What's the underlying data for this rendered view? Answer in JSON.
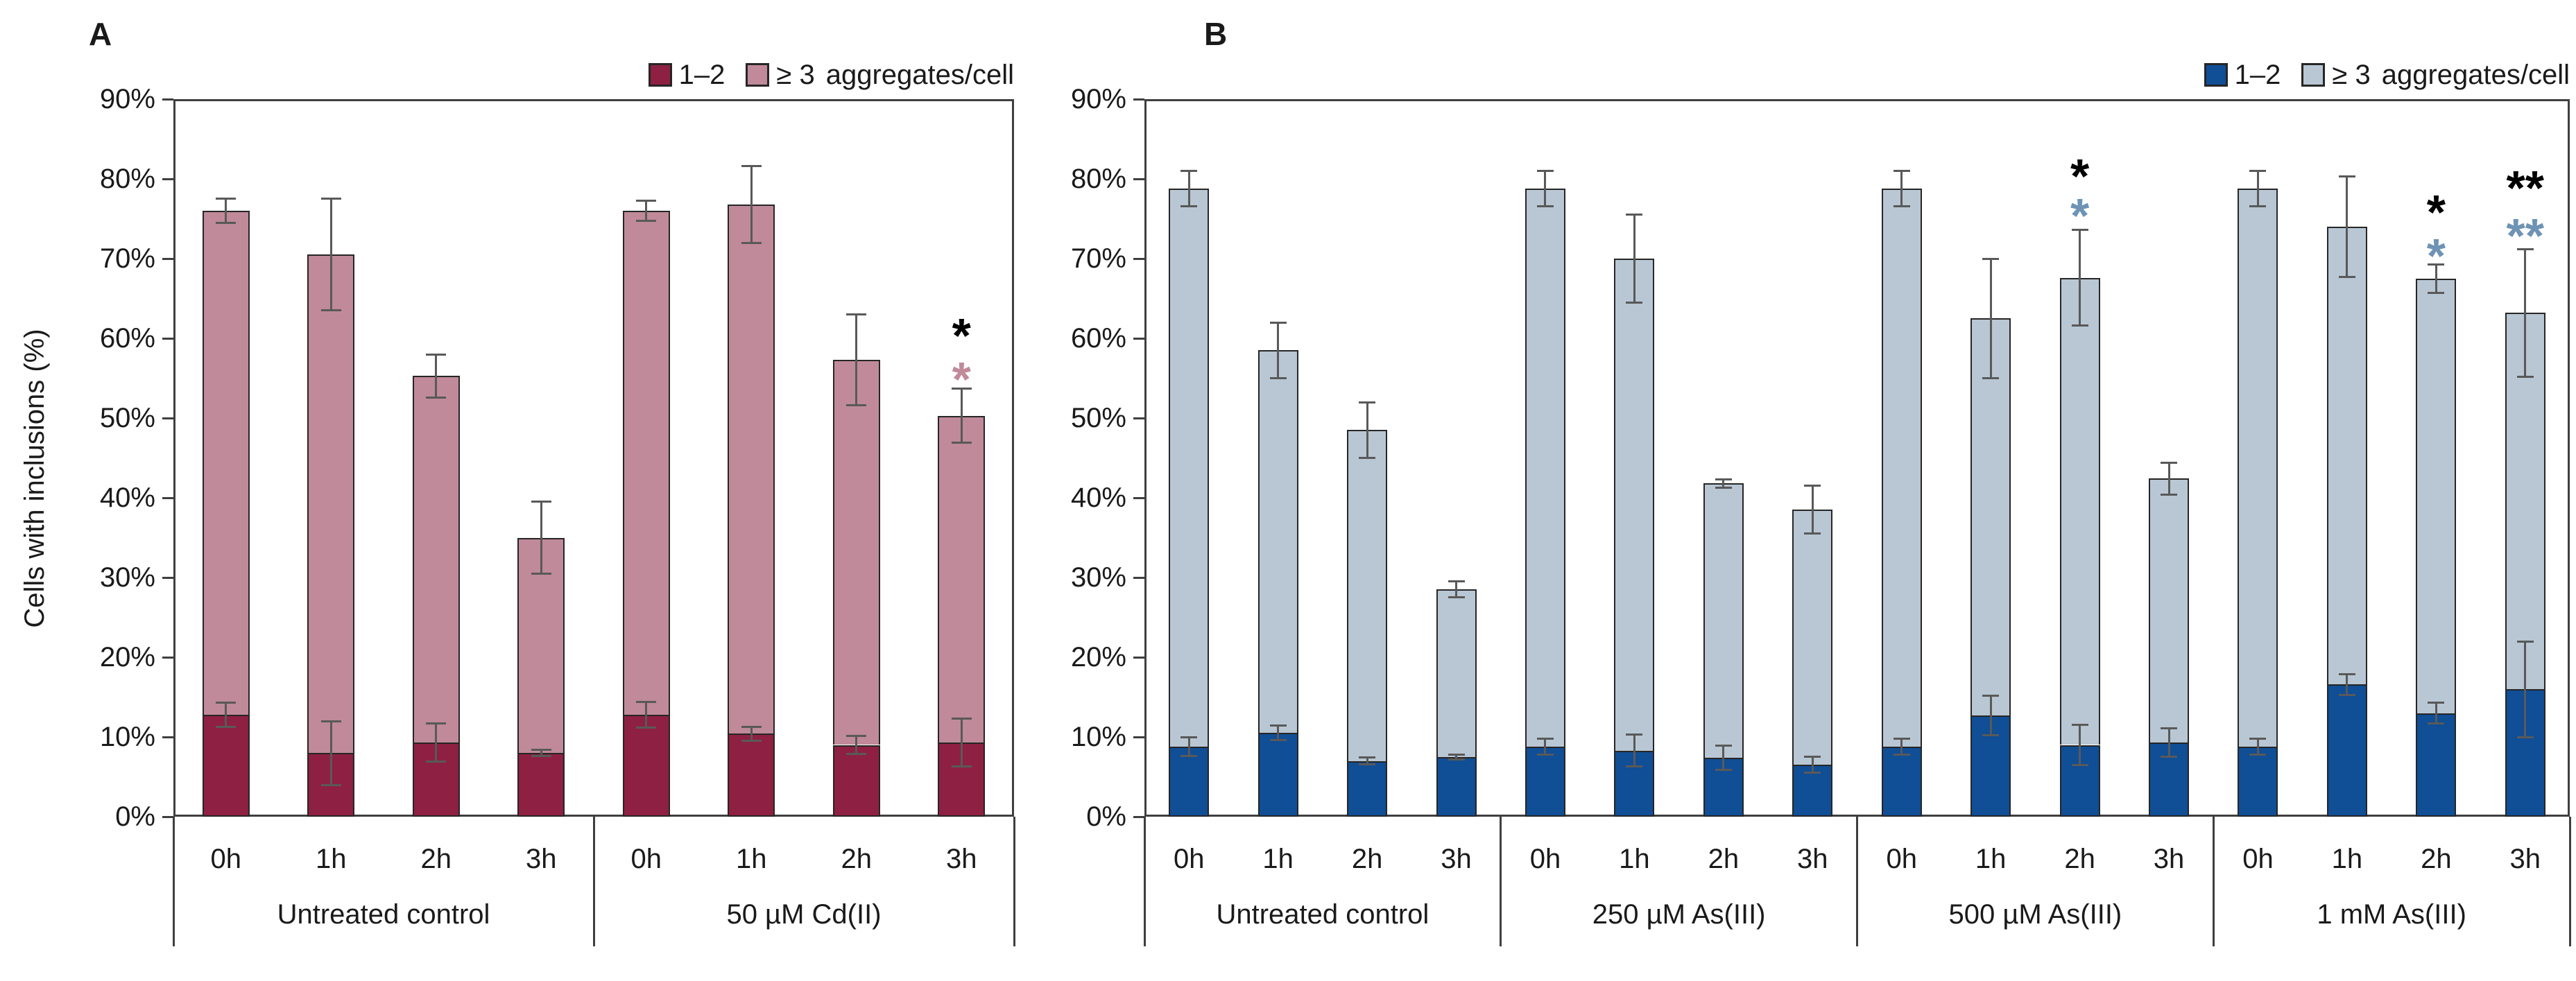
{
  "page": {
    "background": "#FFFFFF"
  },
  "panels": {
    "a": {
      "label": "A",
      "legend": {
        "s1": "1–2",
        "s2": "≥ 3",
        "suffix": "aggregates/cell"
      }
    },
    "b": {
      "label": "B",
      "legend": {
        "s1": "1–2",
        "s2": "≥ 3",
        "suffix": "aggregates/cell"
      }
    }
  },
  "axis": {
    "y_title": "Cells with inclusions (%)"
  },
  "chart_data": [
    {
      "id": "A",
      "type": "bar",
      "stacked": true,
      "title": "",
      "xlabel": "",
      "ylabel": "Cells with inclusions (%)",
      "ylim": [
        0,
        90
      ],
      "yticks": [
        "0%",
        "10%",
        "20%",
        "30%",
        "40%",
        "50%",
        "60%",
        "70%",
        "80%",
        "90%"
      ],
      "grid": false,
      "legend_position": "top-right",
      "legend": [
        "1–2",
        "≥ 3"
      ],
      "legend_suffix": "aggregates/cell",
      "colors": {
        "s1": "#8E2043",
        "s2": "#C08A9A",
        "border": "#262626",
        "axis": "#3F3F3F",
        "error": "#595959",
        "sig_black": "#000000",
        "sig_alt": "#C08A9A"
      },
      "groups": [
        {
          "label": "Untreated control",
          "bars": [
            {
              "x": "0h",
              "s1": 12.8,
              "total": 76.0,
              "err_s1": 1.5,
              "err_total": 1.5,
              "sig": []
            },
            {
              "x": "1h",
              "s1": 8.0,
              "total": 70.5,
              "err_s1": 4.0,
              "err_total": 7.0,
              "sig": []
            },
            {
              "x": "2h",
              "s1": 9.3,
              "total": 55.3,
              "err_s1": 2.4,
              "err_total": 2.7,
              "sig": []
            },
            {
              "x": "3h",
              "s1": 8.0,
              "total": 35.0,
              "err_s1": 0.4,
              "err_total": 4.5,
              "sig": []
            }
          ]
        },
        {
          "label": "50 µM Cd(II)",
          "bars": [
            {
              "x": "0h",
              "s1": 12.8,
              "total": 76.0,
              "err_s1": 1.6,
              "err_total": 1.3,
              "sig": []
            },
            {
              "x": "1h",
              "s1": 10.4,
              "total": 76.8,
              "err_s1": 0.9,
              "err_total": 4.8,
              "sig": []
            },
            {
              "x": "2h",
              "s1": 9.0,
              "total": 57.3,
              "err_s1": 1.1,
              "err_total": 5.7,
              "sig": []
            },
            {
              "x": "3h",
              "s1": 9.3,
              "total": 50.3,
              "err_s1": 3.0,
              "err_total": 3.4,
              "sig": [
                {
                  "t": "*",
                  "c": "#000000",
                  "y": 61.5
                },
                {
                  "t": "*",
                  "c": "#C08A9A",
                  "y": 56.0
                }
              ]
            }
          ]
        }
      ]
    },
    {
      "id": "B",
      "type": "bar",
      "stacked": true,
      "title": "",
      "xlabel": "",
      "ylabel": "",
      "ylim": [
        0,
        90
      ],
      "yticks": [
        "0%",
        "10%",
        "20%",
        "30%",
        "40%",
        "50%",
        "60%",
        "70%",
        "80%",
        "90%"
      ],
      "grid": false,
      "legend_position": "top-right",
      "legend": [
        "1–2",
        "≥ 3"
      ],
      "legend_suffix": "aggregates/cell",
      "colors": {
        "s1": "#104E96",
        "s2": "#B9C7D4",
        "border": "#262626",
        "axis": "#3F3F3F",
        "error": "#595959",
        "sig_black": "#000000",
        "sig_alt": "#6E93B4"
      },
      "groups": [
        {
          "label": "Untreated control",
          "bars": [
            {
              "x": "0h",
              "s1": 8.8,
              "total": 78.8,
              "err_s1": 1.2,
              "err_total": 2.2,
              "sig": []
            },
            {
              "x": "1h",
              "s1": 10.5,
              "total": 58.5,
              "err_s1": 0.9,
              "err_total": 3.5,
              "sig": []
            },
            {
              "x": "2h",
              "s1": 7.0,
              "total": 48.5,
              "err_s1": 0.4,
              "err_total": 3.5,
              "sig": []
            },
            {
              "x": "3h",
              "s1": 7.5,
              "total": 28.5,
              "err_s1": 0.3,
              "err_total": 1.0,
              "sig": []
            }
          ]
        },
        {
          "label": "250 µM As(III)",
          "bars": [
            {
              "x": "0h",
              "s1": 8.8,
              "total": 78.8,
              "err_s1": 1.0,
              "err_total": 2.2,
              "sig": []
            },
            {
              "x": "1h",
              "s1": 8.3,
              "total": 70.0,
              "err_s1": 2.0,
              "err_total": 5.5,
              "sig": []
            },
            {
              "x": "2h",
              "s1": 7.4,
              "total": 41.8,
              "err_s1": 1.5,
              "err_total": 0.5,
              "sig": []
            },
            {
              "x": "3h",
              "s1": 6.5,
              "total": 38.5,
              "err_s1": 1.0,
              "err_total": 3.0,
              "sig": []
            }
          ]
        },
        {
          "label": "500 µM As(III)",
          "bars": [
            {
              "x": "0h",
              "s1": 8.8,
              "total": 78.8,
              "err_s1": 1.0,
              "err_total": 2.2,
              "sig": []
            },
            {
              "x": "1h",
              "s1": 12.7,
              "total": 62.5,
              "err_s1": 2.5,
              "err_total": 7.5,
              "sig": []
            },
            {
              "x": "2h",
              "s1": 9.0,
              "total": 67.6,
              "err_s1": 2.5,
              "err_total": 6.0,
              "sig": [
                {
                  "t": "*",
                  "c": "#000000",
                  "y": 81.5
                },
                {
                  "t": "*",
                  "c": "#6E93B4",
                  "y": 76.5
                }
              ]
            },
            {
              "x": "3h",
              "s1": 9.3,
              "total": 42.4,
              "err_s1": 1.8,
              "err_total": 2.0,
              "sig": []
            }
          ]
        },
        {
          "label": "1 mM  As(III)",
          "bars": [
            {
              "x": "0h",
              "s1": 8.8,
              "total": 78.8,
              "err_s1": 1.0,
              "err_total": 2.2,
              "sig": []
            },
            {
              "x": "1h",
              "s1": 16.6,
              "total": 74.0,
              "err_s1": 1.3,
              "err_total": 6.3,
              "sig": []
            },
            {
              "x": "2h",
              "s1": 13.0,
              "total": 67.5,
              "err_s1": 1.3,
              "err_total": 1.8,
              "sig": [
                {
                  "t": "*",
                  "c": "#000000",
                  "y": 77.0
                },
                {
                  "t": "*",
                  "c": "#6E93B4",
                  "y": 71.5
                }
              ]
            },
            {
              "x": "3h",
              "s1": 16.0,
              "total": 63.2,
              "err_s1": 6.0,
              "err_total": 8.0,
              "sig": [
                {
                  "t": "**",
                  "c": "#000000",
                  "y": 80.0
                },
                {
                  "t": "**",
                  "c": "#6E93B4",
                  "y": 74.0
                }
              ]
            }
          ]
        }
      ]
    }
  ]
}
